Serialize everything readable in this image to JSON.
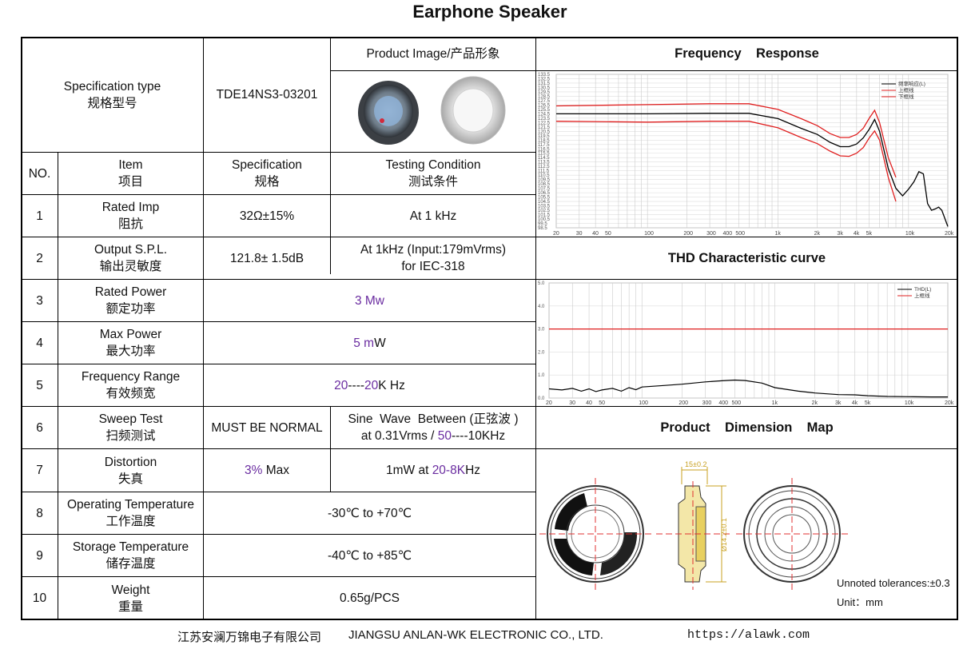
{
  "title": "Earphone Speaker",
  "spec_type": {
    "label_en": "Specification type",
    "label_cn": "规格型号",
    "model": "TDE14NS3-03201"
  },
  "product_image": {
    "label": "Product Image/产品形象"
  },
  "columns": {
    "no": "NO.",
    "item_en": "Item",
    "item_cn": "项目",
    "spec_en": "Specification",
    "spec_cn": "规格",
    "cond_en": "Testing Condition",
    "cond_cn": "测试条件"
  },
  "rows": [
    {
      "no": "1",
      "item_en": "Rated Imp",
      "item_cn": "阻抗",
      "spec": "32Ω±15%",
      "cond": "At 1 kHz"
    },
    {
      "no": "2",
      "item_en": "Output S.P.L.",
      "item_cn": "输出灵敏度",
      "spec": "121.8± 1.5dB",
      "cond1": "At 1kHz (Input:179mVrms)",
      "cond2": "for IEC-318"
    },
    {
      "no": "3",
      "item_en": "Rated Power",
      "item_cn": "额定功率",
      "value": "3 Mw"
    },
    {
      "no": "4",
      "item_en": "Max Power",
      "item_cn": "最大功率",
      "value_num": "5 m",
      "value_unit": "W"
    },
    {
      "no": "5",
      "item_en": "Frequency Range",
      "item_cn": "有效频宽",
      "v1": "20",
      "v2": "----",
      "v3": "20",
      "v4": "K Hz"
    },
    {
      "no": "6",
      "item_en": "Sweep Test",
      "item_cn": "扫频测试",
      "spec": "MUST BE NORMAL",
      "cond1": "Sine  Wave  Between (正弦波 )",
      "cond2a": "at 0.31Vrms / ",
      "cond2b": "50",
      "cond2c": "----10KHz"
    },
    {
      "no": "7",
      "item_en": "Distortion",
      "item_cn": "失真",
      "spec_a": "3%",
      "spec_b": " Max",
      "cond_a": "1mW at ",
      "cond_b": "20-8K",
      "cond_c": "Hz"
    },
    {
      "no": "8",
      "item_en": "Operating Temperature",
      "item_cn": "工作温度",
      "value": "-30℃ to +70℃"
    },
    {
      "no": "9",
      "item_en": "Storage Temperature",
      "item_cn": "储存温度",
      "value": "-40℃ to +85℃"
    },
    {
      "no": "10",
      "item_en": "Weight",
      "item_cn": "重量",
      "value": "0.65g/PCS"
    }
  ],
  "freq_response": {
    "header": "Frequency    Response",
    "legend": [
      "频率响应(L)",
      "上框线",
      "下框线"
    ],
    "y_ticks": [
      "133.5",
      "132.5",
      "131.5",
      "130.5",
      "129.5",
      "128.5",
      "127.5",
      "126.5",
      "125.5",
      "124.5",
      "123.5",
      "122.5",
      "121.5",
      "120.5",
      "119.5",
      "118.5",
      "117.5",
      "116.5",
      "115.5",
      "114.5",
      "113.5",
      "112.5",
      "111.5",
      "110.5",
      "109.5",
      "108.5",
      "107.5",
      "106.5",
      "105.5",
      "104.5",
      "103.5",
      "102.5",
      "101.5",
      "100.5",
      "99.5",
      "98.5"
    ],
    "x_ticks": [
      "20",
      "30",
      "40",
      "50",
      "100",
      "200",
      "300",
      "400",
      "500",
      "1k",
      "2k",
      "3k",
      "4k",
      "5k",
      "10k",
      "20k"
    ],
    "colors": {
      "response": "#000000",
      "limit": "#e02020"
    }
  },
  "thd": {
    "header": "THD Characteristic curve",
    "legend": [
      "THD(L)",
      "上框线"
    ],
    "y_ticks": [
      "5.0",
      "4.0",
      "3.0",
      "2.0",
      "1.0",
      "0.0"
    ],
    "x_ticks": [
      "20",
      "30",
      "40",
      "50",
      "100",
      "200",
      "300",
      "400",
      "500",
      "1k",
      "2k",
      "3k",
      "4k",
      "5k",
      "10k",
      "20k"
    ]
  },
  "dimension": {
    "header": "Product    Dimension    Map",
    "top_dim": "15±0.2",
    "side_dim": "Ø14.2±0.1",
    "tol": "Unnoted tolerances:±0.3",
    "unit": "Unit：mm"
  },
  "footer": {
    "company_cn": "江苏安澜万锦电子有限公司",
    "company_en": "JIANGSU ANLAN-WK ELECTRONIC CO., LTD.",
    "url": "https://alawk.com"
  }
}
